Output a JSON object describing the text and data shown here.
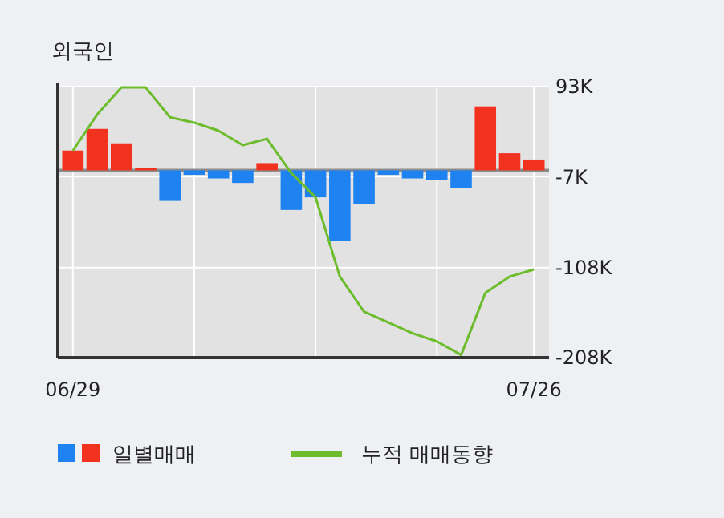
{
  "chart_data": {
    "type": "bar",
    "title": "외국인",
    "categories": [
      "06/29",
      null,
      null,
      null,
      null,
      null,
      null,
      null,
      null,
      null,
      null,
      null,
      null,
      null,
      null,
      null,
      null,
      null,
      null,
      "07/26"
    ],
    "series": [
      {
        "name": "일별매매",
        "colors": [
          "#f0321e",
          "#f0321e",
          "#f0321e",
          "#f0321e",
          "#1e82f0",
          "#1e82f0",
          "#1e82f0",
          "#1e82f0",
          "#f0321e",
          "#1e82f0",
          "#1e82f0",
          "#1e82f0",
          "#1e82f0",
          "#1e82f0",
          "#1e82f0",
          "#1e82f0",
          "#1e82f0",
          "#f0321e",
          "#f0321e",
          "#f0321e"
        ],
        "values": [
          22,
          46,
          30,
          3,
          -34,
          -5,
          -9,
          -14,
          8,
          -44,
          -30,
          -78,
          -37,
          -5,
          -9,
          -11,
          -20,
          71,
          19,
          12
        ]
      },
      {
        "name": "누적 매매동향",
        "type": "line",
        "color": "#6cbc2c",
        "values": [
          22,
          62,
          92,
          92,
          59,
          53,
          44,
          28,
          35,
          -3,
          -30,
          -118,
          -157,
          -169,
          -181,
          -190,
          -205,
          -136,
          -118,
          -110
        ]
      }
    ],
    "ylim": [
      -208,
      93
    ],
    "yticks": [
      {
        "value": 93,
        "label": "93K"
      },
      {
        "value": -7,
        "label": "-7K"
      },
      {
        "value": -108,
        "label": "-108K"
      },
      {
        "value": -208,
        "label": "-208K"
      }
    ],
    "grid": true,
    "legend": "bottom"
  }
}
